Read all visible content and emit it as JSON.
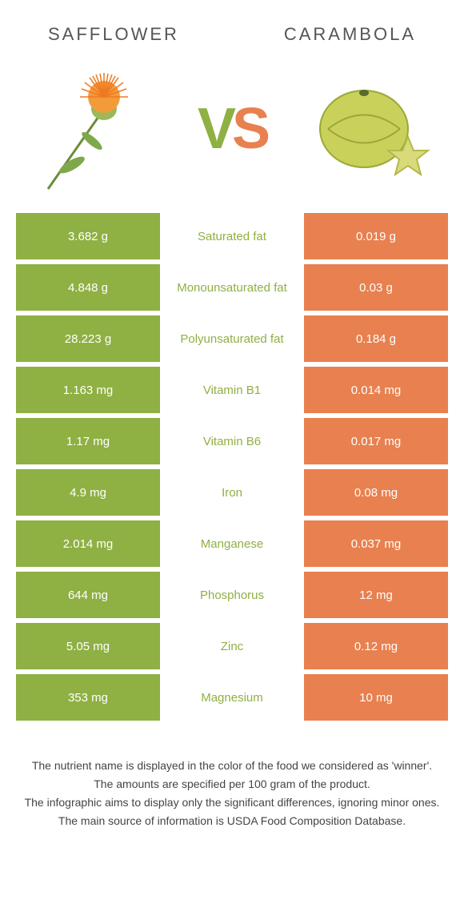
{
  "colors": {
    "left_bg": "#8fb043",
    "right_bg": "#e8804f",
    "mid_left_text": "#e8804f",
    "mid_nutrient_green": "#8fb043",
    "mid_nutrient_orange": "#e8804f",
    "title_color": "#555555"
  },
  "header": {
    "left": "Safflower",
    "right": "Carambola"
  },
  "vs": {
    "v": "V",
    "s": "S"
  },
  "rows": [
    {
      "left": "3.682 g",
      "mid": "Saturated fat",
      "right": "0.019 g",
      "winner": "left"
    },
    {
      "left": "4.848 g",
      "mid": "Monounsaturated fat",
      "right": "0.03 g",
      "winner": "left"
    },
    {
      "left": "28.223 g",
      "mid": "Polyunsaturated fat",
      "right": "0.184 g",
      "winner": "left"
    },
    {
      "left": "1.163 mg",
      "mid": "Vitamin B1",
      "right": "0.014 mg",
      "winner": "left"
    },
    {
      "left": "1.17 mg",
      "mid": "Vitamin B6",
      "right": "0.017 mg",
      "winner": "left"
    },
    {
      "left": "4.9 mg",
      "mid": "Iron",
      "right": "0.08 mg",
      "winner": "left"
    },
    {
      "left": "2.014 mg",
      "mid": "Manganese",
      "right": "0.037 mg",
      "winner": "left"
    },
    {
      "left": "644 mg",
      "mid": "Phosphorus",
      "right": "12 mg",
      "winner": "left"
    },
    {
      "left": "5.05 mg",
      "mid": "Zinc",
      "right": "0.12 mg",
      "winner": "left"
    },
    {
      "left": "353 mg",
      "mid": "Magnesium",
      "right": "10 mg",
      "winner": "left"
    }
  ],
  "footer": {
    "l1": "The nutrient name is displayed in the color of the food we considered as 'winner'.",
    "l2": "The amounts are specified per 100 gram of the product.",
    "l3": "The infographic aims to display only the significant differences, ignoring minor ones.",
    "l4": "The main source of information is USDA Food Composition Database."
  }
}
